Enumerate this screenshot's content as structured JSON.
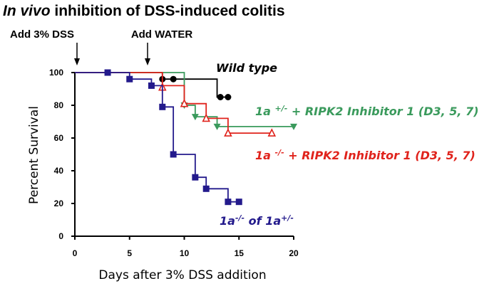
{
  "chart_data": {
    "type": "line",
    "subtype": "kaplan-meier-survival",
    "title": {
      "italic_part": "In vivo",
      "rest": " inhibition of DSS-induced colitis"
    },
    "xlabel": "Days after 3% DSS addition",
    "ylabel": "Percent Survival",
    "xlim": [
      0,
      20
    ],
    "ylim": [
      0,
      100
    ],
    "xticks": [
      0,
      5,
      10,
      15,
      20
    ],
    "yticks": [
      0,
      20,
      40,
      60,
      80,
      100
    ],
    "grid": false,
    "annotations": [
      {
        "id": "dss",
        "text": "Add 3% DSS",
        "x": 0
      },
      {
        "id": "water",
        "text": "Add WATER",
        "x": 7
      }
    ],
    "series": [
      {
        "name": "Wild type",
        "color": "#000000",
        "marker": "circle",
        "steps": [
          [
            0,
            100
          ],
          [
            8,
            96
          ],
          [
            13,
            85
          ],
          [
            14,
            85
          ]
        ],
        "markers": [
          [
            8,
            96
          ],
          [
            9,
            96
          ],
          [
            13.3,
            85
          ],
          [
            14,
            85
          ]
        ],
        "label": {
          "parts": [
            {
              "t": "Wild type"
            }
          ]
        }
      },
      {
        "name": "1a+/- + RIPK2 Inhibitor 1 (D3, 5, 7)",
        "color": "#3a9a5c",
        "marker": "triangle-down",
        "steps": [
          [
            0,
            100
          ],
          [
            10,
            80
          ],
          [
            11,
            73
          ],
          [
            13,
            67
          ],
          [
            20,
            67
          ]
        ],
        "markers": [
          [
            10,
            80
          ],
          [
            11,
            73
          ],
          [
            13,
            67
          ],
          [
            20,
            67
          ]
        ],
        "label": {
          "parts": [
            {
              "t": "1a "
            },
            {
              "t": "+/-",
              "sup": true
            },
            {
              "t": " + RIPK2 Inhibitor 1 (D3, 5, 7)"
            }
          ]
        }
      },
      {
        "name": "1a-/- + RIPK2 Inhibitor 1 (D3, 5, 7)",
        "color": "#e0231c",
        "marker": "triangle-up-open",
        "steps": [
          [
            0,
            100
          ],
          [
            8,
            92
          ],
          [
            10,
            81
          ],
          [
            12,
            72
          ],
          [
            14,
            63
          ],
          [
            18,
            63
          ]
        ],
        "markers": [
          [
            8,
            91
          ],
          [
            10,
            81
          ],
          [
            12,
            72
          ],
          [
            14,
            63
          ],
          [
            18,
            63
          ]
        ],
        "label": {
          "parts": [
            {
              "t": "1a "
            },
            {
              "t": "-/-",
              "sup": true
            },
            {
              "t": " + RIPK2 Inhibitor 1 (D3, 5, 7)"
            }
          ]
        }
      },
      {
        "name": "1a-/- of 1a+/-",
        "color": "#231a8c",
        "marker": "square",
        "steps": [
          [
            0,
            100
          ],
          [
            5,
            96
          ],
          [
            7,
            92
          ],
          [
            8,
            79
          ],
          [
            9,
            50
          ],
          [
            11,
            36
          ],
          [
            12,
            29
          ],
          [
            14,
            21
          ],
          [
            15,
            21
          ]
        ],
        "markers": [
          [
            3,
            100
          ],
          [
            5,
            96
          ],
          [
            7,
            92
          ],
          [
            8,
            79
          ],
          [
            9,
            50
          ],
          [
            11,
            36
          ],
          [
            12,
            29
          ],
          [
            14,
            21
          ],
          [
            15,
            21
          ]
        ],
        "label": {
          "parts": [
            {
              "t": "1a"
            },
            {
              "t": "-/-",
              "sup": true
            },
            {
              "t": " of 1a"
            },
            {
              "t": "+/-",
              "sup": true
            }
          ]
        }
      }
    ]
  }
}
